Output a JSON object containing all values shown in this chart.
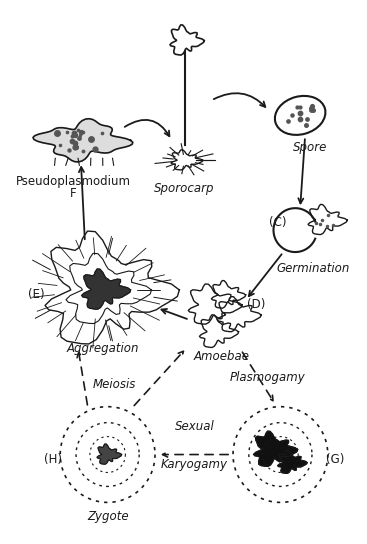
{
  "background_color": "#ffffff",
  "line_color": "#1a1a1a",
  "text_color": "#1a1a1a",
  "fontsize": 8.5,
  "labels": {
    "sporocarp": "Sporocarp",
    "spore": "Spore",
    "germination": "Germination",
    "amoebae": "Amoebae",
    "plasmogamy": "Plasmogamy",
    "sexual": "Sexual",
    "karyogamy": "Karyogamy",
    "zygote": "Zygote",
    "H": "(H)",
    "meiosis": "Meiosis",
    "aggregation": "Aggregation",
    "E": "(E)",
    "pseudoplasmodium": "Pseudoplasmodium",
    "F": "F",
    "D": "(D)",
    "C": "(C)",
    "G": "(G)"
  }
}
